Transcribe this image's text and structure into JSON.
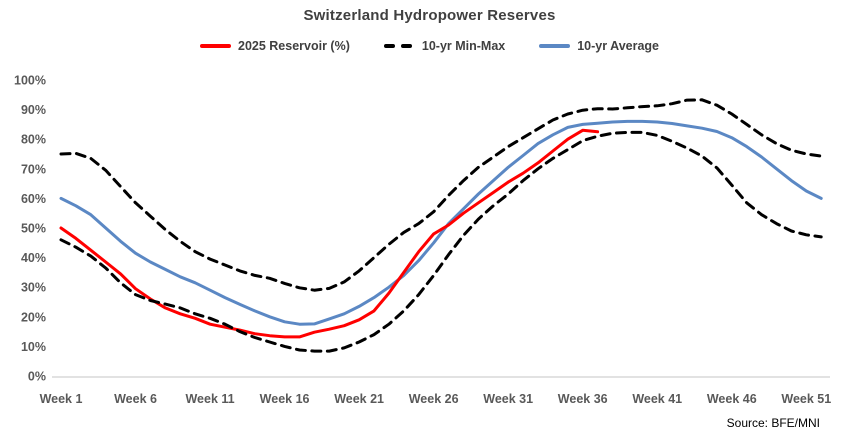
{
  "title": "Switzerland Hydropower Reserves",
  "source": "Source: BFE/MNI",
  "legend": [
    {
      "label": "2025 Reservoir (%)",
      "color": "#ff0000",
      "style": "solid"
    },
    {
      "label": "10-yr Min-Max",
      "color": "#000000",
      "style": "dashed"
    },
    {
      "label": "10-yr Average",
      "color": "#5b88c4",
      "style": "solid"
    }
  ],
  "colors": {
    "reservoir": "#ff0000",
    "minmax": "#000000",
    "average": "#5b88c4",
    "axis_line": "#d9d9d9",
    "tick_text": "#595959",
    "title_text": "#404040"
  },
  "chart_data": {
    "type": "line",
    "title": "Switzerland Hydropower Reserves",
    "xlabel": "",
    "ylabel": "",
    "grid": false,
    "legend_position": "top",
    "ylim": [
      0,
      100
    ],
    "xlim_weeks": [
      1,
      52
    ],
    "x_start_week": 1,
    "y_ticks": [
      "0%",
      "10%",
      "20%",
      "30%",
      "40%",
      "50%",
      "60%",
      "70%",
      "80%",
      "90%",
      "100%"
    ],
    "y_tick_values": [
      0,
      10,
      20,
      30,
      40,
      50,
      60,
      70,
      80,
      90,
      100
    ],
    "x_ticks": [
      "Week 1",
      "Week 6",
      "Week 11",
      "Week 16",
      "Week 21",
      "Week 26",
      "Week 31",
      "Week 36",
      "Week 41",
      "Week 46",
      "Week 51"
    ],
    "x_tick_weeks": [
      1,
      6,
      11,
      16,
      21,
      26,
      31,
      36,
      41,
      46,
      51
    ],
    "series": [
      {
        "name": "2025 Reservoir (%)",
        "color": "#ff0000",
        "dash": false,
        "width": 3,
        "values": [
          50,
          46.5,
          42.5,
          38.5,
          34.5,
          29.5,
          26,
          23,
          21,
          19.5,
          17.5,
          16.5,
          15.5,
          14.3,
          13.6,
          13.2,
          13.2,
          14.8,
          15.8,
          17,
          19,
          22,
          28,
          35,
          42,
          48,
          51,
          55,
          58.5,
          62,
          65.5,
          68.5,
          72,
          76,
          80,
          83,
          82.5
        ]
      },
      {
        "name": "10-yr Max",
        "color": "#000000",
        "dash": true,
        "width": 3,
        "values": [
          75,
          75.2,
          73.5,
          69.5,
          64,
          58.5,
          54,
          49.5,
          45.5,
          42,
          39.5,
          37.5,
          35.5,
          34,
          33,
          31.3,
          29.8,
          29,
          29.6,
          31.8,
          35.5,
          40,
          44.5,
          48.5,
          51.5,
          55.5,
          61,
          66,
          70.5,
          74,
          77.5,
          80.5,
          83.5,
          86.5,
          88.5,
          89.8,
          90.3,
          90.2,
          90.6,
          91,
          91.3,
          92,
          93.2,
          93.3,
          91.5,
          88.5,
          85,
          81.5,
          78.5,
          76.3,
          75,
          74.3
        ]
      },
      {
        "name": "10-yr Min",
        "color": "#000000",
        "dash": true,
        "width": 3,
        "values": [
          46,
          43.5,
          40.5,
          36.5,
          31.5,
          27.5,
          25.5,
          24.3,
          23,
          21,
          19.5,
          17.5,
          15,
          13,
          11.5,
          10,
          8.8,
          8.4,
          8.4,
          9.5,
          11.5,
          14,
          17.5,
          22,
          27.5,
          34,
          41,
          47.5,
          53,
          57.5,
          61.5,
          66,
          70,
          73.5,
          76.5,
          79.5,
          81,
          82,
          82.3,
          82.3,
          81.3,
          79.3,
          77,
          74.3,
          70.3,
          64.5,
          58.5,
          54.5,
          51.5,
          49,
          47.7,
          47
        ]
      },
      {
        "name": "10-yr Average",
        "color": "#5b88c4",
        "dash": false,
        "width": 3,
        "values": [
          60,
          57.5,
          54.5,
          50,
          45.5,
          41.5,
          38.5,
          36,
          33.5,
          31.5,
          29,
          26.5,
          24.2,
          22,
          20,
          18.3,
          17.5,
          17.6,
          19.3,
          21,
          23.5,
          26.5,
          30,
          34,
          39,
          45,
          51.5,
          56.5,
          61.5,
          66,
          70.5,
          74.5,
          78.5,
          81.5,
          84,
          85,
          85.4,
          85.8,
          86,
          86,
          85.8,
          85.3,
          84.5,
          83.7,
          82.6,
          80.5,
          77.5,
          74,
          70,
          66,
          62.5,
          60
        ]
      }
    ]
  }
}
